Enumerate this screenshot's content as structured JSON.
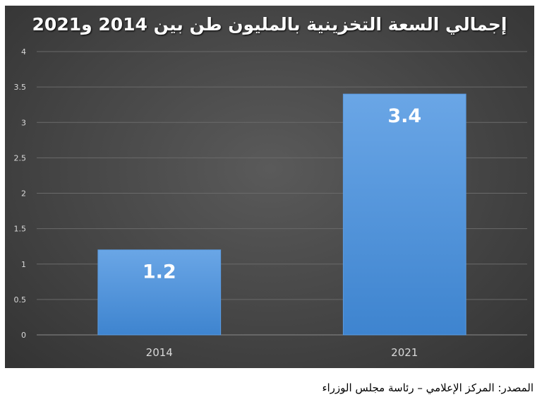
{
  "chart_data": {
    "type": "bar",
    "title": "إجمالي السعة التخزينية بالمليون طن بين 2014 و2021",
    "categories": [
      "2014",
      "2021"
    ],
    "values": [
      1.2,
      3.4
    ],
    "data_labels": [
      "1.2",
      "3.4"
    ],
    "ylim": [
      0,
      4
    ],
    "yticks": [
      "0",
      "0.5",
      "1",
      "1.5",
      "2",
      "2.5",
      "3",
      "3.5",
      "4"
    ],
    "grid": true,
    "legend": "none",
    "bar_color": "#4a8fd8",
    "background_color": "#444444"
  },
  "source_note": "المصدر: المركز الإعلامي – رئاسة مجلس الوزراء"
}
